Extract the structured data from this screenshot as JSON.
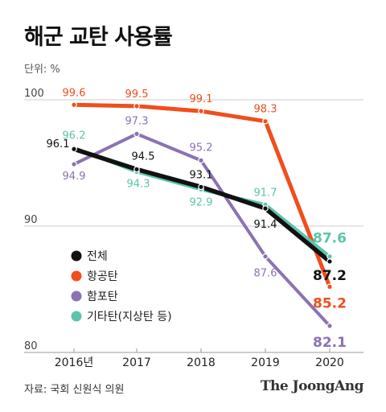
{
  "header": {
    "title": "해군 교탄 사용률",
    "unit": "단위: %"
  },
  "footer": {
    "source": "자료: 국회 신원식 의원",
    "brand": "The JoongAng"
  },
  "colors": {
    "total": "#111111",
    "aviation": "#f04e1c",
    "ship": "#8b72b3",
    "other": "#5cc4ad",
    "grid": "#cccccc"
  },
  "chart_data": {
    "type": "line",
    "categories": [
      "2016년",
      "2017",
      "2018",
      "2019",
      "2020"
    ],
    "ylim": [
      80,
      100
    ],
    "yticks": [
      80,
      90,
      100
    ],
    "legend_position": "left",
    "series": [
      {
        "key": "aviation",
        "name": "항공탄",
        "values": [
          99.6,
          99.5,
          99.1,
          98.3,
          85.2
        ],
        "labels": [
          "99.6",
          "99.5",
          "99.1",
          "98.3",
          "85.2"
        ]
      },
      {
        "key": "ship",
        "name": "함포탄",
        "values": [
          94.9,
          97.3,
          95.2,
          87.6,
          82.1
        ],
        "labels": [
          "94.9",
          "97.3",
          "95.2",
          "87.6",
          "82.1"
        ]
      },
      {
        "key": "other",
        "name": "기타탄(지상탄 등)",
        "values": [
          96.2,
          94.3,
          92.9,
          91.7,
          87.6
        ],
        "labels": [
          "96.2",
          "94.3",
          "92.9",
          "91.7",
          "87.6"
        ]
      },
      {
        "key": "total",
        "name": "전체",
        "values": [
          96.1,
          94.5,
          93.1,
          91.4,
          87.2
        ],
        "labels": [
          "96.1",
          "94.5",
          "93.1",
          "91.4",
          "87.2"
        ]
      }
    ],
    "legend_order": [
      "total",
      "aviation",
      "ship",
      "other"
    ]
  }
}
